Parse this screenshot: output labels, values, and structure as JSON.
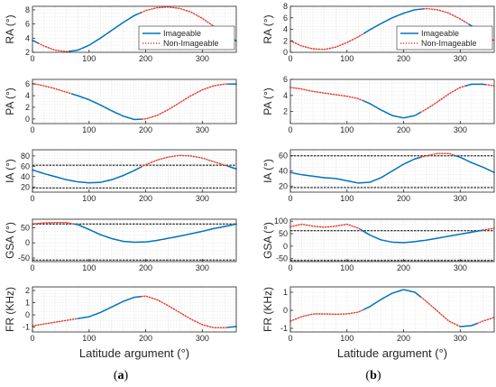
{
  "palette": {
    "imageable": "#0072BD",
    "non_imageable": "#E8382A",
    "limit": "#404040",
    "grid": "#e3e3e3",
    "axis": "#262626"
  },
  "columns": [
    {
      "label": "(a)",
      "bold_letter": "a",
      "xlabel": "Latitude argument (°)",
      "legend": {
        "imageable": "Imageable",
        "non_imageable": "Non-Imageable",
        "placement": "top-right"
      },
      "charts": [
        {
          "name": "ra",
          "type": "line",
          "ylabel": "RA (°)",
          "xlim": [
            0,
            360
          ],
          "ylim": [
            2,
            8.5
          ],
          "xticks": [
            0,
            100,
            200,
            300
          ],
          "yticks": [
            2,
            4,
            6,
            8
          ],
          "x": [
            0,
            20,
            40,
            60,
            80,
            100,
            120,
            140,
            160,
            180,
            200,
            220,
            240,
            260,
            280,
            300,
            320,
            340,
            360
          ],
          "y": [
            3.7,
            2.9,
            2.3,
            2.1,
            2.3,
            3.0,
            4.0,
            5.1,
            6.2,
            7.2,
            7.9,
            8.3,
            8.4,
            8.2,
            7.7,
            6.8,
            5.7,
            4.6,
            3.6
          ],
          "segments": [
            {
              "status": "imageable",
              "from": 0,
              "to": 10
            },
            {
              "status": "non_imageable",
              "from": 10,
              "to": 65
            },
            {
              "status": "imageable",
              "from": 65,
              "to": 192
            },
            {
              "status": "non_imageable",
              "from": 192,
              "to": 340
            },
            {
              "status": "imageable",
              "from": 340,
              "to": 360
            }
          ],
          "limits": [],
          "show_legend": true
        },
        {
          "name": "pa",
          "type": "line",
          "ylabel": "PA (°)",
          "xlim": [
            0,
            360
          ],
          "ylim": [
            -0.8,
            6.8
          ],
          "xticks": [
            0,
            100,
            200,
            300
          ],
          "yticks": [
            0,
            2,
            4,
            6
          ],
          "x": [
            0,
            20,
            40,
            60,
            80,
            100,
            120,
            140,
            160,
            180,
            200,
            220,
            240,
            260,
            280,
            300,
            320,
            340,
            360
          ],
          "y": [
            6.1,
            5.7,
            5.2,
            4.6,
            4.0,
            3.3,
            2.4,
            1.4,
            0.5,
            -0.1,
            0.0,
            0.6,
            1.6,
            2.8,
            4.0,
            5.0,
            5.7,
            6.0,
            6.0
          ],
          "segments": [
            {
              "status": "non_imageable",
              "from": 0,
              "to": 70
            },
            {
              "status": "imageable",
              "from": 70,
              "to": 193
            },
            {
              "status": "non_imageable",
              "from": 193,
              "to": 345
            },
            {
              "status": "imageable",
              "from": 345,
              "to": 360
            }
          ],
          "limits": [],
          "show_legend": false
        },
        {
          "name": "ia",
          "type": "line",
          "ylabel": "IA (°)",
          "xlim": [
            0,
            360
          ],
          "ylim": [
            10,
            92
          ],
          "xticks": [
            0,
            100,
            200,
            300
          ],
          "yticks": [
            20,
            40,
            60,
            80
          ],
          "x": [
            0,
            20,
            40,
            60,
            80,
            100,
            120,
            140,
            160,
            180,
            200,
            220,
            240,
            260,
            280,
            300,
            320,
            340,
            360
          ],
          "y": [
            53,
            46,
            40,
            34,
            30,
            28,
            29,
            34,
            42,
            52,
            63,
            72,
            78,
            81,
            80,
            76,
            69,
            62,
            55
          ],
          "segments": [
            {
              "status": "imageable",
              "from": 0,
              "to": 192
            },
            {
              "status": "non_imageable",
              "from": 192,
              "to": 345
            },
            {
              "status": "imageable",
              "from": 345,
              "to": 360
            }
          ],
          "limits": [
            62,
            18
          ],
          "show_legend": false
        },
        {
          "name": "gsa",
          "type": "line",
          "ylabel": "GSA (°)",
          "xlim": [
            0,
            360
          ],
          "ylim": [
            -62,
            78
          ],
          "xticks": [
            0,
            100,
            200,
            300
          ],
          "yticks": [
            -50,
            0,
            50
          ],
          "x": [
            0,
            20,
            40,
            60,
            80,
            100,
            120,
            140,
            160,
            180,
            200,
            220,
            240,
            260,
            280,
            300,
            320,
            340,
            360
          ],
          "y": [
            62,
            66,
            67,
            67,
            60,
            44,
            27,
            14,
            5,
            2,
            3,
            8,
            15,
            22,
            30,
            38,
            47,
            54,
            62
          ],
          "segments": [
            {
              "status": "non_imageable",
              "from": 0,
              "to": 75
            },
            {
              "status": "imageable",
              "from": 75,
              "to": 360
            }
          ],
          "limits": [
            62,
            -57
          ],
          "show_legend": false
        },
        {
          "name": "fr",
          "type": "line",
          "ylabel": "FR (KHz)",
          "xlim": [
            0,
            360
          ],
          "ylim": [
            -1.4,
            2.3
          ],
          "xticks": [
            0,
            100,
            200,
            300
          ],
          "yticks": [
            -1,
            0,
            1,
            2
          ],
          "x": [
            0,
            20,
            40,
            60,
            80,
            100,
            120,
            140,
            160,
            180,
            200,
            220,
            240,
            260,
            280,
            300,
            320,
            340,
            360
          ],
          "y": [
            -0.9,
            -0.75,
            -0.6,
            -0.45,
            -0.3,
            -0.15,
            0.2,
            0.65,
            1.1,
            1.45,
            1.55,
            1.25,
            0.75,
            0.2,
            -0.35,
            -0.8,
            -1.05,
            -1.05,
            -0.95
          ],
          "segments": [
            {
              "status": "non_imageable",
              "from": 0,
              "to": 80
            },
            {
              "status": "imageable",
              "from": 80,
              "to": 192
            },
            {
              "status": "non_imageable",
              "from": 192,
              "to": 345
            },
            {
              "status": "imageable",
              "from": 345,
              "to": 360
            }
          ],
          "limits": [],
          "show_legend": false
        }
      ]
    },
    {
      "label": "(b)",
      "bold_letter": "b",
      "xlabel": "Latitude argument (°)",
      "legend": {
        "imageable": "Imageable",
        "non_imageable": "Non-Imageable",
        "placement": "top-right"
      },
      "charts": [
        {
          "name": "ra",
          "type": "line",
          "ylabel": "RA (°)",
          "xlim": [
            0,
            360
          ],
          "ylim": [
            0,
            8
          ],
          "xticks": [
            0,
            100,
            200,
            300
          ],
          "yticks": [
            0,
            2,
            4,
            6,
            8
          ],
          "x": [
            0,
            20,
            40,
            60,
            80,
            100,
            120,
            140,
            160,
            180,
            200,
            220,
            240,
            260,
            280,
            300,
            320,
            340,
            360
          ],
          "y": [
            2.0,
            1.1,
            0.6,
            0.5,
            0.9,
            1.7,
            2.7,
            3.9,
            5.0,
            6.0,
            6.8,
            7.4,
            7.6,
            7.4,
            6.8,
            5.8,
            4.6,
            3.3,
            2.0
          ],
          "segments": [
            {
              "status": "non_imageable",
              "from": 0,
              "to": 130
            },
            {
              "status": "imageable",
              "from": 130,
              "to": 235
            },
            {
              "status": "non_imageable",
              "from": 235,
              "to": 315
            },
            {
              "status": "imageable",
              "from": 315,
              "to": 345
            },
            {
              "status": "non_imageable",
              "from": 345,
              "to": 360
            }
          ],
          "limits": [],
          "show_legend": true
        },
        {
          "name": "pa",
          "type": "line",
          "ylabel": "PA (°)",
          "xlim": [
            0,
            360
          ],
          "ylim": [
            0.5,
            6
          ],
          "xticks": [
            0,
            100,
            200,
            300
          ],
          "yticks": [
            2,
            4,
            6
          ],
          "x": [
            0,
            20,
            40,
            60,
            80,
            100,
            120,
            140,
            160,
            180,
            200,
            220,
            240,
            260,
            280,
            300,
            320,
            340,
            360
          ],
          "y": [
            5.0,
            4.8,
            4.5,
            4.3,
            4.1,
            3.9,
            3.6,
            3.0,
            2.2,
            1.5,
            1.2,
            1.5,
            2.3,
            3.2,
            4.2,
            5.0,
            5.4,
            5.4,
            5.2
          ],
          "segments": [
            {
              "status": "non_imageable",
              "from": 0,
              "to": 130
            },
            {
              "status": "imageable",
              "from": 130,
              "to": 230
            },
            {
              "status": "non_imageable",
              "from": 230,
              "to": 310
            },
            {
              "status": "imageable",
              "from": 310,
              "to": 345
            },
            {
              "status": "non_imageable",
              "from": 345,
              "to": 360
            }
          ],
          "limits": [],
          "show_legend": false
        },
        {
          "name": "ia",
          "type": "line",
          "ylabel": "IA (°)",
          "xlim": [
            0,
            360
          ],
          "ylim": [
            12,
            68
          ],
          "xticks": [
            0,
            100,
            200,
            300
          ],
          "yticks": [
            20,
            40,
            60
          ],
          "x": [
            0,
            20,
            40,
            60,
            80,
            100,
            120,
            140,
            160,
            180,
            200,
            220,
            240,
            260,
            280,
            300,
            320,
            340,
            360
          ],
          "y": [
            38,
            35,
            33,
            31,
            30,
            27,
            24,
            25,
            31,
            40,
            49,
            56,
            60,
            63,
            63,
            58,
            51,
            45,
            38
          ],
          "segments": [
            {
              "status": "imageable",
              "from": 0,
              "to": 230
            },
            {
              "status": "non_imageable",
              "from": 230,
              "to": 290
            },
            {
              "status": "imageable",
              "from": 290,
              "to": 360
            }
          ],
          "limits": [
            60,
            18
          ],
          "show_legend": false
        },
        {
          "name": "gsa",
          "type": "line",
          "ylabel": "GSA (°)",
          "xlim": [
            0,
            360
          ],
          "ylim": [
            -62,
            108
          ],
          "xticks": [
            0,
            100,
            200,
            300
          ],
          "yticks": [
            -50,
            0,
            50,
            100
          ],
          "x": [
            0,
            20,
            40,
            60,
            80,
            100,
            120,
            140,
            160,
            180,
            200,
            220,
            240,
            260,
            280,
            300,
            320,
            340,
            360
          ],
          "y": [
            78,
            88,
            80,
            76,
            80,
            88,
            72,
            45,
            25,
            16,
            14,
            18,
            24,
            32,
            40,
            48,
            56,
            64,
            72
          ],
          "segments": [
            {
              "status": "non_imageable",
              "from": 0,
              "to": 125
            },
            {
              "status": "imageable",
              "from": 125,
              "to": 340
            },
            {
              "status": "non_imageable",
              "from": 340,
              "to": 360
            }
          ],
          "limits": [
            62,
            -57
          ],
          "show_legend": false
        },
        {
          "name": "fr",
          "type": "line",
          "ylabel": "FR (KHz)",
          "xlim": [
            0,
            360
          ],
          "ylim": [
            -1.2,
            1.3
          ],
          "xticks": [
            0,
            100,
            200,
            300
          ],
          "yticks": [
            -1,
            0,
            1
          ],
          "x": [
            0,
            20,
            40,
            60,
            80,
            100,
            120,
            140,
            160,
            180,
            200,
            220,
            240,
            260,
            280,
            300,
            320,
            340,
            360
          ],
          "y": [
            -0.6,
            -0.35,
            -0.2,
            -0.2,
            -0.22,
            -0.2,
            -0.1,
            0.2,
            0.6,
            0.95,
            1.15,
            1.0,
            0.5,
            -0.05,
            -0.6,
            -0.9,
            -0.85,
            -0.6,
            -0.4
          ],
          "segments": [
            {
              "status": "non_imageable",
              "from": 0,
              "to": 130
            },
            {
              "status": "imageable",
              "from": 130,
              "to": 230
            },
            {
              "status": "non_imageable",
              "from": 230,
              "to": 300
            },
            {
              "status": "imageable",
              "from": 300,
              "to": 330
            },
            {
              "status": "non_imageable",
              "from": 330,
              "to": 360
            }
          ],
          "limits": [],
          "show_legend": false
        }
      ]
    }
  ]
}
